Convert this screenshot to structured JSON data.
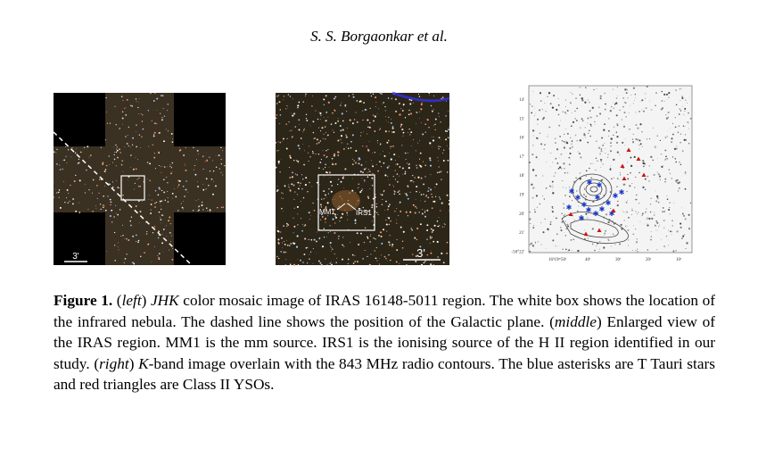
{
  "header": {
    "running_title": "S. S. Borgaonkar et al."
  },
  "figure": {
    "left_panel": {
      "scale_label": "3'"
    },
    "middle_panel": {
      "labels": [
        "MM1",
        "IRS1"
      ],
      "scale_label": "3'"
    },
    "right_panel": {
      "y_tick_labels": [
        "14'",
        "15'",
        "16'",
        "17'",
        "18'",
        "19'",
        "20'",
        "21'",
        "-50°22'"
      ],
      "x_tick_labels": [
        "16ʰ19ᵐ50ˢ",
        "40ˢ",
        "30ˢ",
        "20ˢ",
        "10ˢ"
      ]
    },
    "caption": [
      {
        "text": "Figure 1.",
        "style": "bold"
      },
      {
        "text": " (",
        "style": "normal"
      },
      {
        "text": "left",
        "style": "italic"
      },
      {
        "text": ") ",
        "style": "normal"
      },
      {
        "text": "JHK",
        "style": "italic"
      },
      {
        "text": " color mosaic image of IRAS 16148-5011 region. The white box shows the location of the infrared nebula. The dashed line shows the position of the Galactic plane. (",
        "style": "normal"
      },
      {
        "text": "middle",
        "style": "italic"
      },
      {
        "text": ") Enlarged view of the IRAS region. MM1 is the mm source. IRS1 is the ionising source of the H II region identified in our study. (",
        "style": "normal"
      },
      {
        "text": "right",
        "style": "italic"
      },
      {
        "text": ") ",
        "style": "normal"
      },
      {
        "text": "K",
        "style": "italic"
      },
      {
        "text": "-band image overlain with the 843 MHz radio contours. The blue asterisks are T Tauri stars and red triangles are Class II YSOs.",
        "style": "normal"
      }
    ]
  }
}
